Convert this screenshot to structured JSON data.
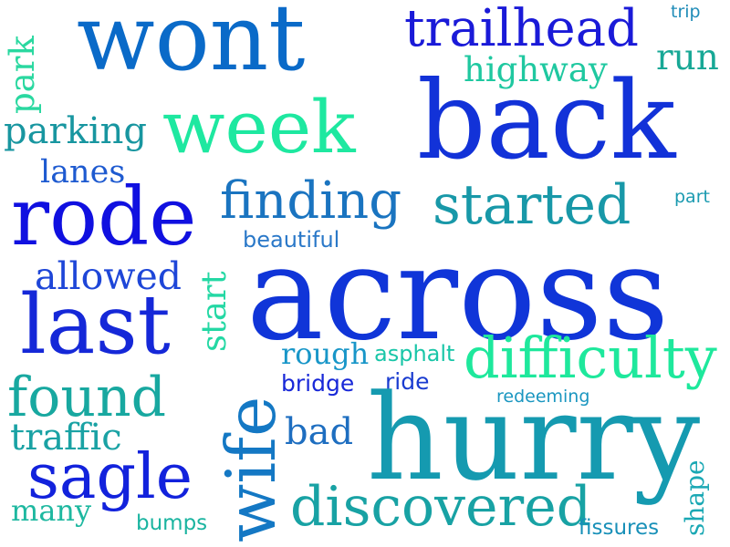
{
  "words": {
    "wont": {
      "text": "wont",
      "color": "#0a6ac8"
    },
    "trailhead": {
      "text": "trailhead",
      "color": "#1a1ad8"
    },
    "trip": {
      "text": "trip",
      "color": "#1f8cb8"
    },
    "highway": {
      "text": "highway",
      "color": "#1fc8a0"
    },
    "run": {
      "text": "run",
      "color": "#18a896"
    },
    "park": {
      "text": "park",
      "color": "#2ad8a0"
    },
    "parking": {
      "text": "parking",
      "color": "#1896a0"
    },
    "week": {
      "text": "week",
      "color": "#1ee8a0"
    },
    "back": {
      "text": "back",
      "color": "#1232d8"
    },
    "lanes": {
      "text": "lanes",
      "color": "#1e5ad0"
    },
    "rode": {
      "text": "rode",
      "color": "#1010e0"
    },
    "finding": {
      "text": "finding",
      "color": "#1a74c0"
    },
    "started": {
      "text": "started",
      "color": "#1898a8"
    },
    "part": {
      "text": "part",
      "color": "#1a9ab0"
    },
    "beautiful": {
      "text": "beautiful",
      "color": "#2a78c8"
    },
    "allowed": {
      "text": "allowed",
      "color": "#1e46d8"
    },
    "across": {
      "text": "across",
      "color": "#1035d8"
    },
    "last": {
      "text": "last",
      "color": "#1528d8"
    },
    "start": {
      "text": "start",
      "color": "#24d8a4"
    },
    "rough": {
      "text": "rough",
      "color": "#1896c8"
    },
    "asphalt": {
      "text": "asphalt",
      "color": "#1ac6a8"
    },
    "difficulty": {
      "text": "difficulty",
      "color": "#1ee89c"
    },
    "wife": {
      "text": "wife",
      "color": "#1478c4"
    },
    "bridge": {
      "text": "bridge",
      "color": "#1828d8"
    },
    "ride": {
      "text": "ride",
      "color": "#1a3cd0"
    },
    "found": {
      "text": "found",
      "color": "#18a8a0"
    },
    "redeeming": {
      "text": "redeeming",
      "color": "#1a96c0"
    },
    "hurry": {
      "text": "hurry",
      "color": "#159ab0"
    },
    "traffic": {
      "text": "traffic",
      "color": "#1aa2a4"
    },
    "bad": {
      "text": "bad",
      "color": "#1e6ec0"
    },
    "shape": {
      "text": "shape",
      "color": "#1aa8b4"
    },
    "sagle": {
      "text": "sagle",
      "color": "#1222dc"
    },
    "discovered": {
      "text": "discovered",
      "color": "#18a2a4"
    },
    "many": {
      "text": "many",
      "color": "#1eb8a0"
    },
    "bumps": {
      "text": "bumps",
      "color": "#1ab4a0"
    },
    "fissures": {
      "text": "fissures",
      "color": "#1890b8"
    }
  }
}
